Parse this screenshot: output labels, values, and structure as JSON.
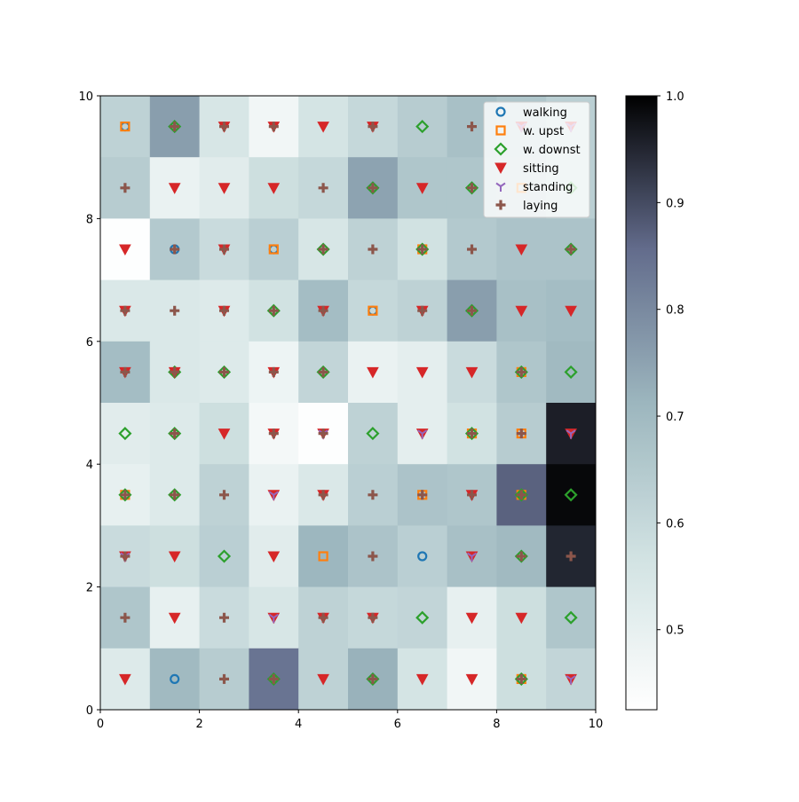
{
  "chart_data": {
    "type": "heatmap",
    "title": "",
    "xlabel": "",
    "ylabel": "",
    "xlim": [
      0,
      10
    ],
    "ylim": [
      0,
      10
    ],
    "xticks": [
      "0",
      "2",
      "4",
      "6",
      "8",
      "10"
    ],
    "yticks": [
      "0",
      "2",
      "4",
      "6",
      "8",
      "10"
    ],
    "grid": false,
    "colormap": "bone_r",
    "colorbar": {
      "range": [
        0.425,
        1.0
      ],
      "ticks": [
        "0.5",
        "0.6",
        "0.7",
        "0.8",
        "0.9",
        "1.0"
      ]
    },
    "legend": {
      "placement": "top-right",
      "entries": [
        {
          "label": "walking",
          "marker": "circle",
          "color": "#1f77b4"
        },
        {
          "label": "w. upst",
          "marker": "square",
          "color": "#ff7f0e"
        },
        {
          "label": "w. downst",
          "marker": "diamond",
          "color": "#2ca02c"
        },
        {
          "label": "sitting",
          "marker": "triangle-down",
          "color": "#d62728"
        },
        {
          "label": "standing",
          "marker": "tri-down",
          "color": "#9467bd"
        },
        {
          "label": "laying",
          "marker": "plus",
          "color": "#8c564b"
        }
      ]
    },
    "cell_values_rows_top_to_bottom": [
      [
        0.62,
        0.76,
        0.55,
        0.47,
        0.56,
        0.6,
        0.64,
        0.68,
        0.66,
        0.63
      ],
      [
        0.64,
        0.49,
        0.52,
        0.58,
        0.6,
        0.75,
        0.66,
        0.66,
        0.65,
        0.63
      ],
      [
        0.43,
        0.65,
        0.59,
        0.63,
        0.55,
        0.62,
        0.57,
        0.65,
        0.67,
        0.67
      ],
      [
        0.54,
        0.54,
        0.53,
        0.57,
        0.69,
        0.6,
        0.62,
        0.76,
        0.68,
        0.69
      ],
      [
        0.69,
        0.54,
        0.53,
        0.48,
        0.61,
        0.49,
        0.51,
        0.59,
        0.66,
        0.7
      ],
      [
        0.52,
        0.53,
        0.58,
        0.46,
        0.43,
        0.62,
        0.51,
        0.57,
        0.64,
        0.96
      ],
      [
        0.5,
        0.53,
        0.62,
        0.49,
        0.54,
        0.63,
        0.67,
        0.66,
        0.87,
        0.99
      ],
      [
        0.59,
        0.58,
        0.63,
        0.52,
        0.71,
        0.67,
        0.63,
        0.68,
        0.7,
        0.95
      ],
      [
        0.66,
        0.5,
        0.59,
        0.55,
        0.62,
        0.6,
        0.61,
        0.5,
        0.58,
        0.66
      ],
      [
        0.53,
        0.7,
        0.64,
        0.84,
        0.62,
        0.72,
        0.56,
        0.47,
        0.58,
        0.61
      ]
    ],
    "markers": [
      {
        "x": 0.5,
        "y": 9.5,
        "label": "w. upst"
      },
      {
        "x": 0.5,
        "y": 9.5,
        "label": "walking"
      },
      {
        "x": 1.5,
        "y": 9.5,
        "label": "w. downst"
      },
      {
        "x": 1.5,
        "y": 9.5,
        "label": "laying"
      },
      {
        "x": 2.5,
        "y": 9.5,
        "label": "sitting"
      },
      {
        "x": 2.5,
        "y": 9.5,
        "label": "laying"
      },
      {
        "x": 3.5,
        "y": 9.5,
        "label": "sitting"
      },
      {
        "x": 3.5,
        "y": 9.5,
        "label": "laying"
      },
      {
        "x": 4.5,
        "y": 9.5,
        "label": "sitting"
      },
      {
        "x": 5.5,
        "y": 9.5,
        "label": "sitting"
      },
      {
        "x": 5.5,
        "y": 9.5,
        "label": "laying"
      },
      {
        "x": 6.5,
        "y": 9.5,
        "label": "w. downst"
      },
      {
        "x": 7.5,
        "y": 9.5,
        "label": "laying"
      },
      {
        "x": 8.5,
        "y": 9.5,
        "label": "sitting"
      },
      {
        "x": 8.5,
        "y": 9.5,
        "label": "standing"
      },
      {
        "x": 9.5,
        "y": 9.5,
        "label": "sitting"
      },
      {
        "x": 9.5,
        "y": 9.5,
        "label": "standing"
      },
      {
        "x": 0.5,
        "y": 8.5,
        "label": "laying"
      },
      {
        "x": 1.5,
        "y": 8.5,
        "label": "sitting"
      },
      {
        "x": 2.5,
        "y": 8.5,
        "label": "sitting"
      },
      {
        "x": 3.5,
        "y": 8.5,
        "label": "sitting"
      },
      {
        "x": 4.5,
        "y": 8.5,
        "label": "laying"
      },
      {
        "x": 5.5,
        "y": 8.5,
        "label": "w. downst"
      },
      {
        "x": 5.5,
        "y": 8.5,
        "label": "laying"
      },
      {
        "x": 6.5,
        "y": 8.5,
        "label": "sitting"
      },
      {
        "x": 7.5,
        "y": 8.5,
        "label": "w. downst"
      },
      {
        "x": 7.5,
        "y": 8.5,
        "label": "laying"
      },
      {
        "x": 8.5,
        "y": 8.5,
        "label": "w. upst"
      },
      {
        "x": 9.5,
        "y": 8.5,
        "label": "w. downst"
      },
      {
        "x": 0.5,
        "y": 7.5,
        "label": "sitting"
      },
      {
        "x": 1.5,
        "y": 7.5,
        "label": "walking"
      },
      {
        "x": 1.5,
        "y": 7.5,
        "label": "laying"
      },
      {
        "x": 2.5,
        "y": 7.5,
        "label": "sitting"
      },
      {
        "x": 2.5,
        "y": 7.5,
        "label": "laying"
      },
      {
        "x": 3.5,
        "y": 7.5,
        "label": "w. upst"
      },
      {
        "x": 3.5,
        "y": 7.5,
        "label": "walking"
      },
      {
        "x": 4.5,
        "y": 7.5,
        "label": "w. downst"
      },
      {
        "x": 4.5,
        "y": 7.5,
        "label": "laying"
      },
      {
        "x": 5.5,
        "y": 7.5,
        "label": "laying"
      },
      {
        "x": 6.5,
        "y": 7.5,
        "label": "w. upst"
      },
      {
        "x": 6.5,
        "y": 7.5,
        "label": "w. downst"
      },
      {
        "x": 6.5,
        "y": 7.5,
        "label": "laying"
      },
      {
        "x": 7.5,
        "y": 7.5,
        "label": "laying"
      },
      {
        "x": 8.5,
        "y": 7.5,
        "label": "sitting"
      },
      {
        "x": 9.5,
        "y": 7.5,
        "label": "w. downst"
      },
      {
        "x": 9.5,
        "y": 7.5,
        "label": "laying"
      },
      {
        "x": 0.5,
        "y": 6.5,
        "label": "sitting"
      },
      {
        "x": 0.5,
        "y": 6.5,
        "label": "laying"
      },
      {
        "x": 1.5,
        "y": 6.5,
        "label": "laying"
      },
      {
        "x": 2.5,
        "y": 6.5,
        "label": "sitting"
      },
      {
        "x": 2.5,
        "y": 6.5,
        "label": "laying"
      },
      {
        "x": 3.5,
        "y": 6.5,
        "label": "w. downst"
      },
      {
        "x": 3.5,
        "y": 6.5,
        "label": "laying"
      },
      {
        "x": 4.5,
        "y": 6.5,
        "label": "sitting"
      },
      {
        "x": 4.5,
        "y": 6.5,
        "label": "laying"
      },
      {
        "x": 5.5,
        "y": 6.5,
        "label": "w. upst"
      },
      {
        "x": 5.5,
        "y": 6.5,
        "label": "walking"
      },
      {
        "x": 6.5,
        "y": 6.5,
        "label": "sitting"
      },
      {
        "x": 6.5,
        "y": 6.5,
        "label": "laying"
      },
      {
        "x": 7.5,
        "y": 6.5,
        "label": "w. downst"
      },
      {
        "x": 7.5,
        "y": 6.5,
        "label": "laying"
      },
      {
        "x": 8.5,
        "y": 6.5,
        "label": "sitting"
      },
      {
        "x": 9.5,
        "y": 6.5,
        "label": "sitting"
      },
      {
        "x": 0.5,
        "y": 5.5,
        "label": "sitting"
      },
      {
        "x": 0.5,
        "y": 5.5,
        "label": "laying"
      },
      {
        "x": 1.5,
        "y": 5.5,
        "label": "sitting"
      },
      {
        "x": 1.5,
        "y": 5.5,
        "label": "w. downst"
      },
      {
        "x": 1.5,
        "y": 5.5,
        "label": "laying"
      },
      {
        "x": 2.5,
        "y": 5.5,
        "label": "w. downst"
      },
      {
        "x": 2.5,
        "y": 5.5,
        "label": "laying"
      },
      {
        "x": 3.5,
        "y": 5.5,
        "label": "sitting"
      },
      {
        "x": 3.5,
        "y": 5.5,
        "label": "laying"
      },
      {
        "x": 4.5,
        "y": 5.5,
        "label": "w. downst"
      },
      {
        "x": 4.5,
        "y": 5.5,
        "label": "laying"
      },
      {
        "x": 5.5,
        "y": 5.5,
        "label": "sitting"
      },
      {
        "x": 6.5,
        "y": 5.5,
        "label": "sitting"
      },
      {
        "x": 7.5,
        "y": 5.5,
        "label": "sitting"
      },
      {
        "x": 8.5,
        "y": 5.5,
        "label": "w. upst"
      },
      {
        "x": 8.5,
        "y": 5.5,
        "label": "w. downst"
      },
      {
        "x": 8.5,
        "y": 5.5,
        "label": "laying"
      },
      {
        "x": 9.5,
        "y": 5.5,
        "label": "w. downst"
      },
      {
        "x": 0.5,
        "y": 4.5,
        "label": "w. downst"
      },
      {
        "x": 1.5,
        "y": 4.5,
        "label": "w. downst"
      },
      {
        "x": 1.5,
        "y": 4.5,
        "label": "laying"
      },
      {
        "x": 2.5,
        "y": 4.5,
        "label": "sitting"
      },
      {
        "x": 3.5,
        "y": 4.5,
        "label": "sitting"
      },
      {
        "x": 3.5,
        "y": 4.5,
        "label": "laying"
      },
      {
        "x": 4.5,
        "y": 4.5,
        "label": "sitting"
      },
      {
        "x": 4.5,
        "y": 4.5,
        "label": "standing"
      },
      {
        "x": 4.5,
        "y": 4.5,
        "label": "laying"
      },
      {
        "x": 5.5,
        "y": 4.5,
        "label": "w. downst"
      },
      {
        "x": 6.5,
        "y": 4.5,
        "label": "sitting"
      },
      {
        "x": 6.5,
        "y": 4.5,
        "label": "standing"
      },
      {
        "x": 7.5,
        "y": 4.5,
        "label": "w. upst"
      },
      {
        "x": 7.5,
        "y": 4.5,
        "label": "w. downst"
      },
      {
        "x": 7.5,
        "y": 4.5,
        "label": "laying"
      },
      {
        "x": 8.5,
        "y": 4.5,
        "label": "w. upst"
      },
      {
        "x": 8.5,
        "y": 4.5,
        "label": "laying"
      },
      {
        "x": 9.5,
        "y": 4.5,
        "label": "sitting"
      },
      {
        "x": 9.5,
        "y": 4.5,
        "label": "standing"
      },
      {
        "x": 0.5,
        "y": 3.5,
        "label": "w. upst"
      },
      {
        "x": 0.5,
        "y": 3.5,
        "label": "w. downst"
      },
      {
        "x": 0.5,
        "y": 3.5,
        "label": "laying"
      },
      {
        "x": 1.5,
        "y": 3.5,
        "label": "w. downst"
      },
      {
        "x": 1.5,
        "y": 3.5,
        "label": "laying"
      },
      {
        "x": 2.5,
        "y": 3.5,
        "label": "laying"
      },
      {
        "x": 3.5,
        "y": 3.5,
        "label": "sitting"
      },
      {
        "x": 3.5,
        "y": 3.5,
        "label": "standing"
      },
      {
        "x": 4.5,
        "y": 3.5,
        "label": "sitting"
      },
      {
        "x": 4.5,
        "y": 3.5,
        "label": "laying"
      },
      {
        "x": 5.5,
        "y": 3.5,
        "label": "laying"
      },
      {
        "x": 6.5,
        "y": 3.5,
        "label": "w. upst"
      },
      {
        "x": 6.5,
        "y": 3.5,
        "label": "laying"
      },
      {
        "x": 7.5,
        "y": 3.5,
        "label": "sitting"
      },
      {
        "x": 7.5,
        "y": 3.5,
        "label": "laying"
      },
      {
        "x": 8.5,
        "y": 3.5,
        "label": "w. upst"
      },
      {
        "x": 8.5,
        "y": 3.5,
        "label": "w. downst"
      },
      {
        "x": 8.5,
        "y": 3.5,
        "label": "laying"
      },
      {
        "x": 9.5,
        "y": 3.5,
        "label": "w. downst"
      },
      {
        "x": 0.5,
        "y": 2.5,
        "label": "sitting"
      },
      {
        "x": 0.5,
        "y": 2.5,
        "label": "standing"
      },
      {
        "x": 0.5,
        "y": 2.5,
        "label": "laying"
      },
      {
        "x": 1.5,
        "y": 2.5,
        "label": "sitting"
      },
      {
        "x": 2.5,
        "y": 2.5,
        "label": "w. downst"
      },
      {
        "x": 3.5,
        "y": 2.5,
        "label": "sitting"
      },
      {
        "x": 4.5,
        "y": 2.5,
        "label": "w. upst"
      },
      {
        "x": 5.5,
        "y": 2.5,
        "label": "laying"
      },
      {
        "x": 6.5,
        "y": 2.5,
        "label": "walking"
      },
      {
        "x": 7.5,
        "y": 2.5,
        "label": "sitting"
      },
      {
        "x": 7.5,
        "y": 2.5,
        "label": "standing"
      },
      {
        "x": 8.5,
        "y": 2.5,
        "label": "w. downst"
      },
      {
        "x": 8.5,
        "y": 2.5,
        "label": "laying"
      },
      {
        "x": 9.5,
        "y": 2.5,
        "label": "laying"
      },
      {
        "x": 0.5,
        "y": 1.5,
        "label": "laying"
      },
      {
        "x": 1.5,
        "y": 1.5,
        "label": "sitting"
      },
      {
        "x": 2.5,
        "y": 1.5,
        "label": "laying"
      },
      {
        "x": 3.5,
        "y": 1.5,
        "label": "sitting"
      },
      {
        "x": 3.5,
        "y": 1.5,
        "label": "standing"
      },
      {
        "x": 4.5,
        "y": 1.5,
        "label": "sitting"
      },
      {
        "x": 4.5,
        "y": 1.5,
        "label": "laying"
      },
      {
        "x": 5.5,
        "y": 1.5,
        "label": "sitting"
      },
      {
        "x": 5.5,
        "y": 1.5,
        "label": "laying"
      },
      {
        "x": 6.5,
        "y": 1.5,
        "label": "w. downst"
      },
      {
        "x": 7.5,
        "y": 1.5,
        "label": "sitting"
      },
      {
        "x": 8.5,
        "y": 1.5,
        "label": "sitting"
      },
      {
        "x": 9.5,
        "y": 1.5,
        "label": "w. downst"
      },
      {
        "x": 0.5,
        "y": 0.5,
        "label": "sitting"
      },
      {
        "x": 1.5,
        "y": 0.5,
        "label": "walking"
      },
      {
        "x": 2.5,
        "y": 0.5,
        "label": "laying"
      },
      {
        "x": 3.5,
        "y": 0.5,
        "label": "w. downst"
      },
      {
        "x": 3.5,
        "y": 0.5,
        "label": "laying"
      },
      {
        "x": 4.5,
        "y": 0.5,
        "label": "sitting"
      },
      {
        "x": 5.5,
        "y": 0.5,
        "label": "w. downst"
      },
      {
        "x": 5.5,
        "y": 0.5,
        "label": "laying"
      },
      {
        "x": 6.5,
        "y": 0.5,
        "label": "sitting"
      },
      {
        "x": 7.5,
        "y": 0.5,
        "label": "sitting"
      },
      {
        "x": 8.5,
        "y": 0.5,
        "label": "w. upst"
      },
      {
        "x": 8.5,
        "y": 0.5,
        "label": "w. downst"
      },
      {
        "x": 8.5,
        "y": 0.5,
        "label": "laying"
      },
      {
        "x": 9.5,
        "y": 0.5,
        "label": "sitting"
      },
      {
        "x": 9.5,
        "y": 0.5,
        "label": "standing"
      }
    ]
  }
}
